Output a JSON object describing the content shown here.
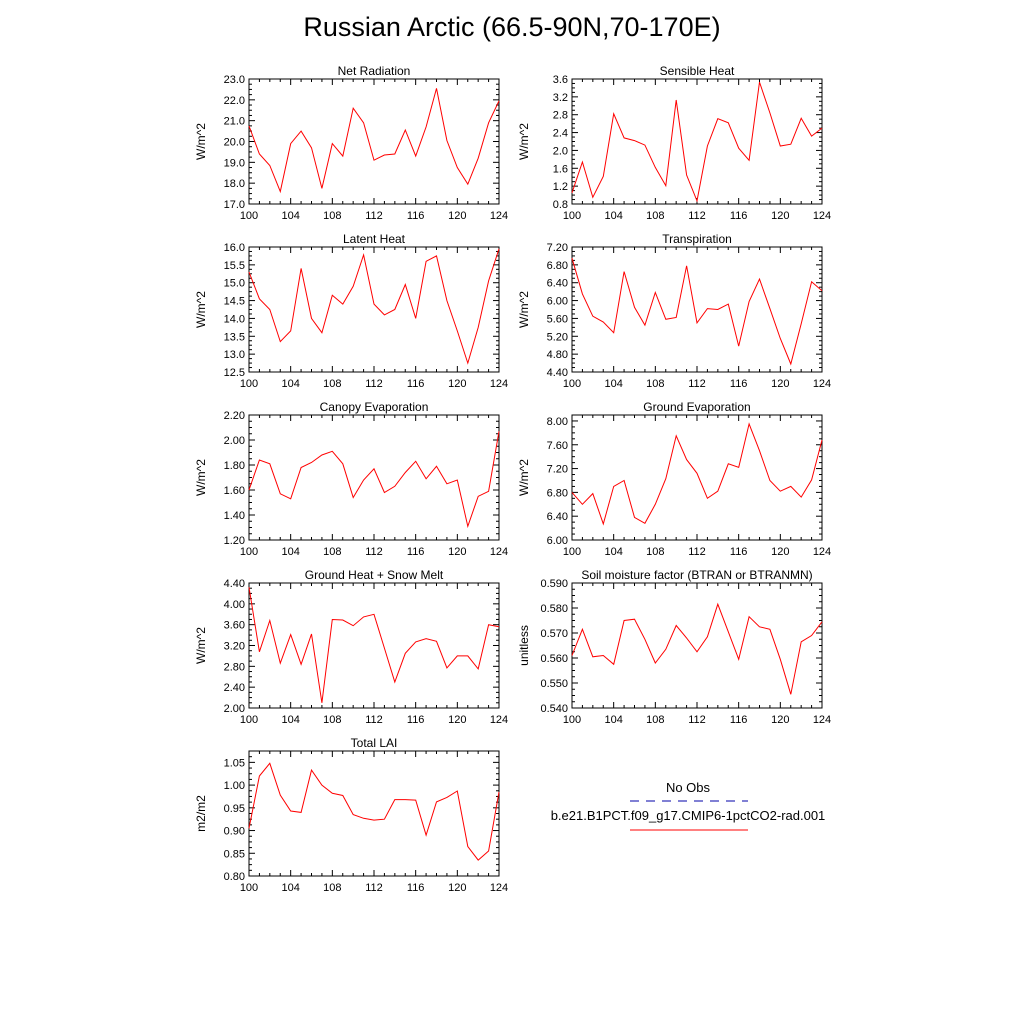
{
  "title": "Russian Arctic (66.5-90N,70-170E)",
  "colors": {
    "model": "#ff0000",
    "obs": "#0000aa",
    "axis": "#000000"
  },
  "legend": {
    "obs_label": "No Obs",
    "model_label": "b.e21.B1PCT.f09_g17.CMIP6-1pctCO2-rad.001"
  },
  "chart_data": [
    {
      "type": "line",
      "title": "Net Radiation",
      "ylabel": "W/m^2",
      "xlim": [
        100,
        124
      ],
      "ylim": [
        17.0,
        23.0
      ],
      "xticks": [
        "100",
        "104",
        "108",
        "112",
        "116",
        "120",
        "124"
      ],
      "yticks": [
        "17.0",
        "18.0",
        "19.0",
        "20.0",
        "21.0",
        "22.0",
        "23.0"
      ],
      "x": [
        100,
        101,
        102,
        103,
        104,
        105,
        106,
        107,
        108,
        109,
        110,
        111,
        112,
        113,
        114,
        115,
        116,
        117,
        118,
        119,
        120,
        121,
        122,
        123,
        124
      ],
      "series": [
        {
          "values": [
            20.75,
            19.4,
            18.85,
            17.6,
            19.9,
            20.5,
            19.7,
            17.75,
            19.9,
            19.3,
            21.6,
            20.9,
            19.1,
            19.35,
            19.4,
            20.55,
            19.3,
            20.7,
            22.55,
            20.05,
            18.75,
            17.95,
            19.2,
            20.9,
            21.95
          ]
        }
      ]
    },
    {
      "type": "line",
      "title": "Sensible Heat",
      "ylabel": "W/m^2",
      "xlim": [
        100,
        124
      ],
      "ylim": [
        0.8,
        3.6
      ],
      "xticks": [
        "100",
        "104",
        "108",
        "112",
        "116",
        "120",
        "124"
      ],
      "yticks": [
        "0.8",
        "1.2",
        "1.6",
        "2.0",
        "2.4",
        "2.8",
        "3.2",
        "3.6"
      ],
      "x": [
        100,
        101,
        102,
        103,
        104,
        105,
        106,
        107,
        108,
        109,
        110,
        111,
        112,
        113,
        114,
        115,
        116,
        117,
        118,
        119,
        120,
        121,
        122,
        123,
        124
      ],
      "series": [
        {
          "values": [
            1.05,
            1.74,
            0.95,
            1.42,
            2.82,
            2.28,
            2.22,
            2.12,
            1.62,
            1.21,
            3.13,
            1.45,
            0.87,
            2.1,
            2.71,
            2.62,
            2.05,
            1.78,
            3.53,
            2.84,
            2.1,
            2.14,
            2.72,
            2.32,
            2.5
          ]
        }
      ]
    },
    {
      "type": "line",
      "title": "Latent Heat",
      "ylabel": "W/m^2",
      "xlim": [
        100,
        124
      ],
      "ylim": [
        12.5,
        16.0
      ],
      "xticks": [
        "100",
        "104",
        "108",
        "112",
        "116",
        "120",
        "124"
      ],
      "yticks": [
        "12.5",
        "13.0",
        "13.5",
        "14.0",
        "14.5",
        "15.0",
        "15.5",
        "16.0"
      ],
      "x": [
        100,
        101,
        102,
        103,
        104,
        105,
        106,
        107,
        108,
        109,
        110,
        111,
        112,
        113,
        114,
        115,
        116,
        117,
        118,
        119,
        120,
        121,
        122,
        123,
        124
      ],
      "series": [
        {
          "values": [
            15.3,
            14.55,
            14.25,
            13.35,
            13.65,
            15.4,
            14.0,
            13.6,
            14.65,
            14.4,
            14.9,
            15.78,
            14.4,
            14.1,
            14.25,
            14.95,
            14.0,
            15.6,
            15.75,
            14.5,
            13.65,
            12.75,
            13.75,
            15.05,
            15.95
          ]
        }
      ]
    },
    {
      "type": "line",
      "title": "Transpiration",
      "ylabel": "W/m^2",
      "xlim": [
        100,
        124
      ],
      "ylim": [
        4.4,
        7.2
      ],
      "xticks": [
        "100",
        "104",
        "108",
        "112",
        "116",
        "120",
        "124"
      ],
      "yticks": [
        "4.40",
        "4.80",
        "5.20",
        "5.60",
        "6.00",
        "6.40",
        "6.80",
        "7.20"
      ],
      "x": [
        100,
        101,
        102,
        103,
        104,
        105,
        106,
        107,
        108,
        109,
        110,
        111,
        112,
        113,
        114,
        115,
        116,
        117,
        118,
        119,
        120,
        121,
        122,
        123,
        124
      ],
      "series": [
        {
          "values": [
            6.95,
            6.15,
            5.65,
            5.52,
            5.28,
            6.65,
            5.85,
            5.45,
            6.18,
            5.58,
            5.62,
            6.78,
            5.5,
            5.82,
            5.8,
            5.92,
            4.98,
            5.98,
            6.48,
            5.82,
            5.15,
            4.58,
            5.48,
            6.42,
            6.22
          ]
        }
      ]
    },
    {
      "type": "line",
      "title": "Canopy Evaporation",
      "ylabel": "W/m^2",
      "xlim": [
        100,
        124
      ],
      "ylim": [
        1.2,
        2.2
      ],
      "xticks": [
        "100",
        "104",
        "108",
        "112",
        "116",
        "120",
        "124"
      ],
      "yticks": [
        "1.20",
        "1.40",
        "1.60",
        "1.80",
        "2.00",
        "2.20"
      ],
      "x": [
        100,
        101,
        102,
        103,
        104,
        105,
        106,
        107,
        108,
        109,
        110,
        111,
        112,
        113,
        114,
        115,
        116,
        117,
        118,
        119,
        120,
        121,
        122,
        123,
        124
      ],
      "series": [
        {
          "values": [
            1.6,
            1.84,
            1.81,
            1.57,
            1.53,
            1.78,
            1.82,
            1.88,
            1.91,
            1.81,
            1.54,
            1.68,
            1.77,
            1.58,
            1.63,
            1.74,
            1.83,
            1.69,
            1.79,
            1.65,
            1.68,
            1.31,
            1.55,
            1.59,
            2.07
          ]
        }
      ]
    },
    {
      "type": "line",
      "title": "Ground Evaporation",
      "ylabel": "W/m^2",
      "xlim": [
        100,
        124
      ],
      "ylim": [
        6.0,
        8.1
      ],
      "xticks": [
        "100",
        "104",
        "108",
        "112",
        "116",
        "120",
        "124"
      ],
      "yticks": [
        "6.00",
        "6.40",
        "6.80",
        "7.20",
        "7.60",
        "8.00"
      ],
      "x": [
        100,
        101,
        102,
        103,
        104,
        105,
        106,
        107,
        108,
        109,
        110,
        111,
        112,
        113,
        114,
        115,
        116,
        117,
        118,
        119,
        120,
        121,
        122,
        123,
        124
      ],
      "series": [
        {
          "values": [
            6.8,
            6.6,
            6.78,
            6.27,
            6.9,
            7.0,
            6.38,
            6.28,
            6.6,
            7.03,
            7.75,
            7.35,
            7.12,
            6.7,
            6.82,
            7.28,
            7.22,
            7.95,
            7.5,
            7.0,
            6.82,
            6.9,
            6.72,
            7.01,
            7.68
          ]
        }
      ]
    },
    {
      "type": "line",
      "title": "Ground Heat + Snow Melt",
      "ylabel": "W/m^2",
      "xlim": [
        100,
        124
      ],
      "ylim": [
        2.0,
        4.4
      ],
      "xticks": [
        "100",
        "104",
        "108",
        "112",
        "116",
        "120",
        "124"
      ],
      "yticks": [
        "2.00",
        "2.40",
        "2.80",
        "3.20",
        "3.60",
        "4.00",
        "4.40"
      ],
      "x": [
        100,
        101,
        102,
        103,
        104,
        105,
        106,
        107,
        108,
        109,
        110,
        111,
        112,
        113,
        114,
        115,
        116,
        117,
        118,
        119,
        120,
        121,
        122,
        123,
        124
      ],
      "series": [
        {
          "values": [
            4.32,
            3.08,
            3.68,
            2.86,
            3.41,
            2.84,
            3.42,
            2.1,
            3.7,
            3.69,
            3.58,
            3.75,
            3.8,
            3.15,
            2.5,
            3.05,
            3.27,
            3.33,
            3.28,
            2.77,
            3.0,
            3.0,
            2.75,
            3.6,
            3.56
          ]
        }
      ]
    },
    {
      "type": "line",
      "title": "Soil moisture factor (BTRAN or BTRANMN)",
      "ylabel": "unitless",
      "xlim": [
        100,
        124
      ],
      "ylim": [
        0.54,
        0.59
      ],
      "xticks": [
        "100",
        "104",
        "108",
        "112",
        "116",
        "120",
        "124"
      ],
      "yticks": [
        "0.540",
        "0.550",
        "0.560",
        "0.570",
        "0.580",
        "0.590"
      ],
      "x": [
        100,
        101,
        102,
        103,
        104,
        105,
        106,
        107,
        108,
        109,
        110,
        111,
        112,
        113,
        114,
        115,
        116,
        117,
        118,
        119,
        120,
        121,
        122,
        123,
        124
      ],
      "series": [
        {
          "values": [
            0.561,
            0.5715,
            0.5605,
            0.561,
            0.5575,
            0.575,
            0.5755,
            0.5675,
            0.558,
            0.5635,
            0.573,
            0.568,
            0.5625,
            0.5685,
            0.5815,
            0.5705,
            0.5595,
            0.5765,
            0.5725,
            0.5715,
            0.5595,
            0.5455,
            0.5665,
            0.569,
            0.5745
          ]
        }
      ]
    },
    {
      "type": "line",
      "title": "Total LAI",
      "ylabel": "m2/m2",
      "xlim": [
        100,
        124
      ],
      "ylim": [
        0.8,
        1.075
      ],
      "xticks": [
        "100",
        "104",
        "108",
        "112",
        "116",
        "120",
        "124"
      ],
      "yticks": [
        "0.80",
        "0.85",
        "0.90",
        "0.95",
        "1.00",
        "1.05"
      ],
      "x": [
        100,
        101,
        102,
        103,
        104,
        105,
        106,
        107,
        108,
        109,
        110,
        111,
        112,
        113,
        114,
        115,
        116,
        117,
        118,
        119,
        120,
        121,
        122,
        123,
        124
      ],
      "series": [
        {
          "values": [
            0.905,
            1.02,
            1.048,
            0.978,
            0.943,
            0.94,
            1.033,
            1.0,
            0.982,
            0.977,
            0.935,
            0.927,
            0.923,
            0.925,
            0.968,
            0.968,
            0.967,
            0.89,
            0.963,
            0.973,
            0.987,
            0.865,
            0.835,
            0.855,
            0.985
          ]
        }
      ]
    }
  ]
}
